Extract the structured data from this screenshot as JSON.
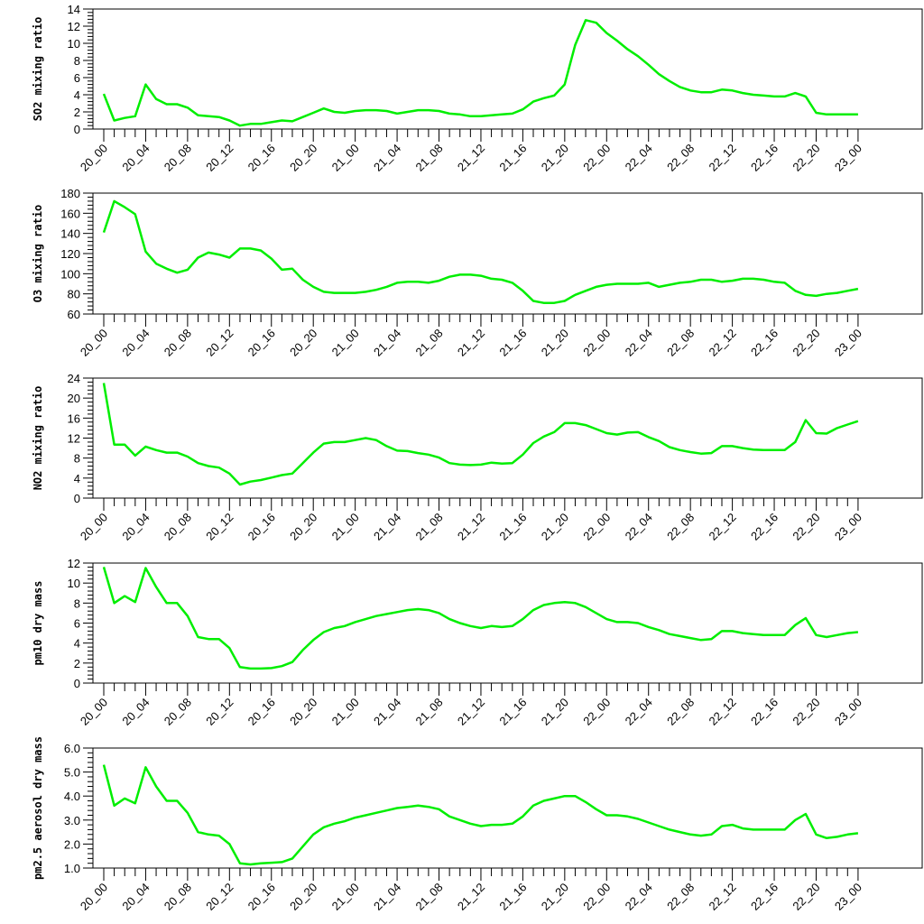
{
  "chart_data": [
    {
      "type": "line",
      "ylabel": "SO2 mixing ratio",
      "ylim": [
        0,
        14
      ],
      "yticks": [
        0,
        2,
        4,
        6,
        8,
        10,
        12,
        14
      ],
      "ytick_labels": [
        "0",
        "2",
        "4",
        "6",
        "8",
        "10",
        "12",
        "14"
      ],
      "xtick_labels": [
        "20_00",
        "20_04",
        "20_08",
        "20_12",
        "20_16",
        "20_20",
        "21_00",
        "21_04",
        "21_08",
        "21_12",
        "21_16",
        "21_20",
        "22_00",
        "22_04",
        "22_08",
        "22_12",
        "22_16",
        "22_20",
        "23_00"
      ],
      "color": "#00ee00",
      "values": [
        4.1,
        1.0,
        1.3,
        1.5,
        5.2,
        3.5,
        2.9,
        2.9,
        2.5,
        1.6,
        1.5,
        1.4,
        1.0,
        0.4,
        0.6,
        0.6,
        0.8,
        1.0,
        0.9,
        1.4,
        1.9,
        2.4,
        2.0,
        1.9,
        2.1,
        2.2,
        2.2,
        2.1,
        1.8,
        2.0,
        2.2,
        2.2,
        2.1,
        1.8,
        1.7,
        1.5,
        1.5,
        1.6,
        1.7,
        1.8,
        2.3,
        3.2,
        3.6,
        3.9,
        5.2,
        9.8,
        12.7,
        12.4,
        11.2,
        10.3,
        9.3,
        8.5,
        7.5,
        6.4,
        5.6,
        4.9,
        4.5,
        4.3,
        4.3,
        4.6,
        4.5,
        4.2,
        4.0,
        3.9,
        3.8,
        3.8,
        4.2,
        3.8,
        1.9,
        1.7,
        1.7,
        1.7,
        1.7
      ]
    },
    {
      "type": "line",
      "ylabel": "O3 mixing ratio",
      "ylim": [
        60,
        180
      ],
      "yticks": [
        60,
        80,
        100,
        120,
        140,
        160,
        180
      ],
      "ytick_labels": [
        "60",
        "80",
        "100",
        "120",
        "140",
        "160",
        "180"
      ],
      "xtick_labels": [
        "20_00",
        "20_04",
        "20_08",
        "20_12",
        "20_16",
        "20_20",
        "21_00",
        "21_04",
        "21_08",
        "21_12",
        "21_16",
        "21_20",
        "22_00",
        "22_04",
        "22_08",
        "22_12",
        "22_16",
        "22_20",
        "23_00"
      ],
      "color": "#00ee00",
      "values": [
        141,
        172,
        166,
        159,
        122,
        110,
        105,
        101,
        104,
        116,
        121,
        119,
        116,
        125,
        125,
        123,
        115,
        104,
        105,
        94,
        87,
        82,
        81,
        81,
        81,
        82,
        84,
        87,
        91,
        92,
        92,
        91,
        93,
        97,
        99,
        99,
        98,
        95,
        94,
        91,
        83,
        73,
        71,
        71,
        73,
        79,
        83,
        87,
        89,
        90,
        90,
        90,
        91,
        87,
        89,
        91,
        92,
        94,
        94,
        92,
        93,
        95,
        95,
        94,
        92,
        91,
        83,
        79,
        78,
        80,
        81,
        83,
        85
      ]
    },
    {
      "type": "line",
      "ylabel": "NO2 mixing ratio",
      "ylim": [
        0,
        24
      ],
      "yticks": [
        0,
        4,
        8,
        12,
        16,
        20,
        24
      ],
      "ytick_labels": [
        "0",
        "4",
        "8",
        "12",
        "16",
        "20",
        "24"
      ],
      "xtick_labels": [
        "20_00",
        "20_04",
        "20_08",
        "20_12",
        "20_16",
        "20_20",
        "21_00",
        "21_04",
        "21_08",
        "21_12",
        "21_16",
        "21_20",
        "22_00",
        "22_04",
        "22_08",
        "22_12",
        "22_16",
        "22_20",
        "23_00"
      ],
      "color": "#00ee00",
      "values": [
        23.0,
        10.7,
        10.7,
        8.5,
        10.3,
        9.6,
        9.1,
        9.1,
        8.3,
        7.0,
        6.4,
        6.1,
        4.9,
        2.7,
        3.3,
        3.6,
        4.1,
        4.6,
        4.9,
        7.0,
        9.1,
        10.9,
        11.2,
        11.2,
        11.6,
        12.0,
        11.6,
        10.4,
        9.5,
        9.4,
        9.0,
        8.7,
        8.1,
        7.0,
        6.7,
        6.6,
        6.7,
        7.1,
        6.9,
        7.0,
        8.7,
        11.0,
        12.3,
        13.2,
        15.0,
        15.0,
        14.6,
        13.8,
        13.0,
        12.7,
        13.1,
        13.2,
        12.2,
        11.4,
        10.2,
        9.6,
        9.2,
        8.9,
        9.0,
        10.4,
        10.4,
        10.0,
        9.7,
        9.6,
        9.6,
        9.6,
        11.2,
        15.6,
        13.0,
        12.9,
        14.0,
        14.7,
        15.4
      ]
    },
    {
      "type": "line",
      "ylabel": "pm10 dry mass",
      "ylim": [
        0,
        12
      ],
      "yticks": [
        0,
        2,
        4,
        6,
        8,
        10,
        12
      ],
      "ytick_labels": [
        "0",
        "2",
        "4",
        "6",
        "8",
        "10",
        "12"
      ],
      "xtick_labels": [
        "20_00",
        "20_04",
        "20_08",
        "20_12",
        "20_16",
        "20_20",
        "21_00",
        "21_04",
        "21_08",
        "21_12",
        "21_16",
        "21_20",
        "22_00",
        "22_04",
        "22_08",
        "22_12",
        "22_16",
        "22_20",
        "23_00"
      ],
      "color": "#00ee00",
      "values": [
        11.6,
        8.0,
        8.7,
        8.1,
        11.5,
        9.6,
        8.0,
        8.0,
        6.7,
        4.6,
        4.4,
        4.4,
        3.5,
        1.6,
        1.45,
        1.45,
        1.5,
        1.7,
        2.1,
        3.3,
        4.3,
        5.1,
        5.5,
        5.7,
        6.1,
        6.4,
        6.7,
        6.9,
        7.1,
        7.3,
        7.4,
        7.3,
        7.0,
        6.4,
        6.0,
        5.7,
        5.5,
        5.7,
        5.6,
        5.7,
        6.4,
        7.3,
        7.8,
        8.0,
        8.1,
        8.0,
        7.6,
        7.0,
        6.4,
        6.1,
        6.1,
        6.0,
        5.6,
        5.3,
        4.9,
        4.7,
        4.5,
        4.3,
        4.4,
        5.2,
        5.2,
        5.0,
        4.9,
        4.8,
        4.8,
        4.8,
        5.8,
        6.5,
        4.8,
        4.6,
        4.8,
        5.0,
        5.1
      ]
    },
    {
      "type": "line",
      "ylabel": "pm2.5 aerosol dry mass",
      "ylim": [
        1.0,
        6.0
      ],
      "yticks": [
        1.0,
        2.0,
        3.0,
        4.0,
        5.0,
        6.0
      ],
      "ytick_labels": [
        "1.0",
        "2.0",
        "3.0",
        "4.0",
        "5.0",
        "6.0"
      ],
      "xtick_labels": [
        "20_00",
        "20_04",
        "20_08",
        "20_12",
        "20_16",
        "20_20",
        "21_00",
        "21_04",
        "21_08",
        "21_12",
        "21_16",
        "21_20",
        "22_00",
        "22_04",
        "22_08",
        "22_12",
        "22_16",
        "22_20",
        "23_00"
      ],
      "color": "#00ee00",
      "values": [
        5.3,
        3.6,
        3.9,
        3.7,
        5.2,
        4.4,
        3.8,
        3.8,
        3.3,
        2.5,
        2.4,
        2.35,
        2.0,
        1.2,
        1.15,
        1.2,
        1.22,
        1.25,
        1.4,
        1.9,
        2.4,
        2.7,
        2.85,
        2.95,
        3.1,
        3.2,
        3.3,
        3.4,
        3.5,
        3.55,
        3.6,
        3.55,
        3.45,
        3.15,
        3.0,
        2.85,
        2.75,
        2.8,
        2.8,
        2.85,
        3.15,
        3.6,
        3.8,
        3.9,
        4.0,
        4.0,
        3.75,
        3.45,
        3.2,
        3.2,
        3.15,
        3.05,
        2.9,
        2.75,
        2.6,
        2.5,
        2.4,
        2.35,
        2.4,
        2.75,
        2.8,
        2.65,
        2.6,
        2.6,
        2.6,
        2.6,
        3.0,
        3.25,
        2.4,
        2.25,
        2.3,
        2.4,
        2.45
      ]
    }
  ]
}
